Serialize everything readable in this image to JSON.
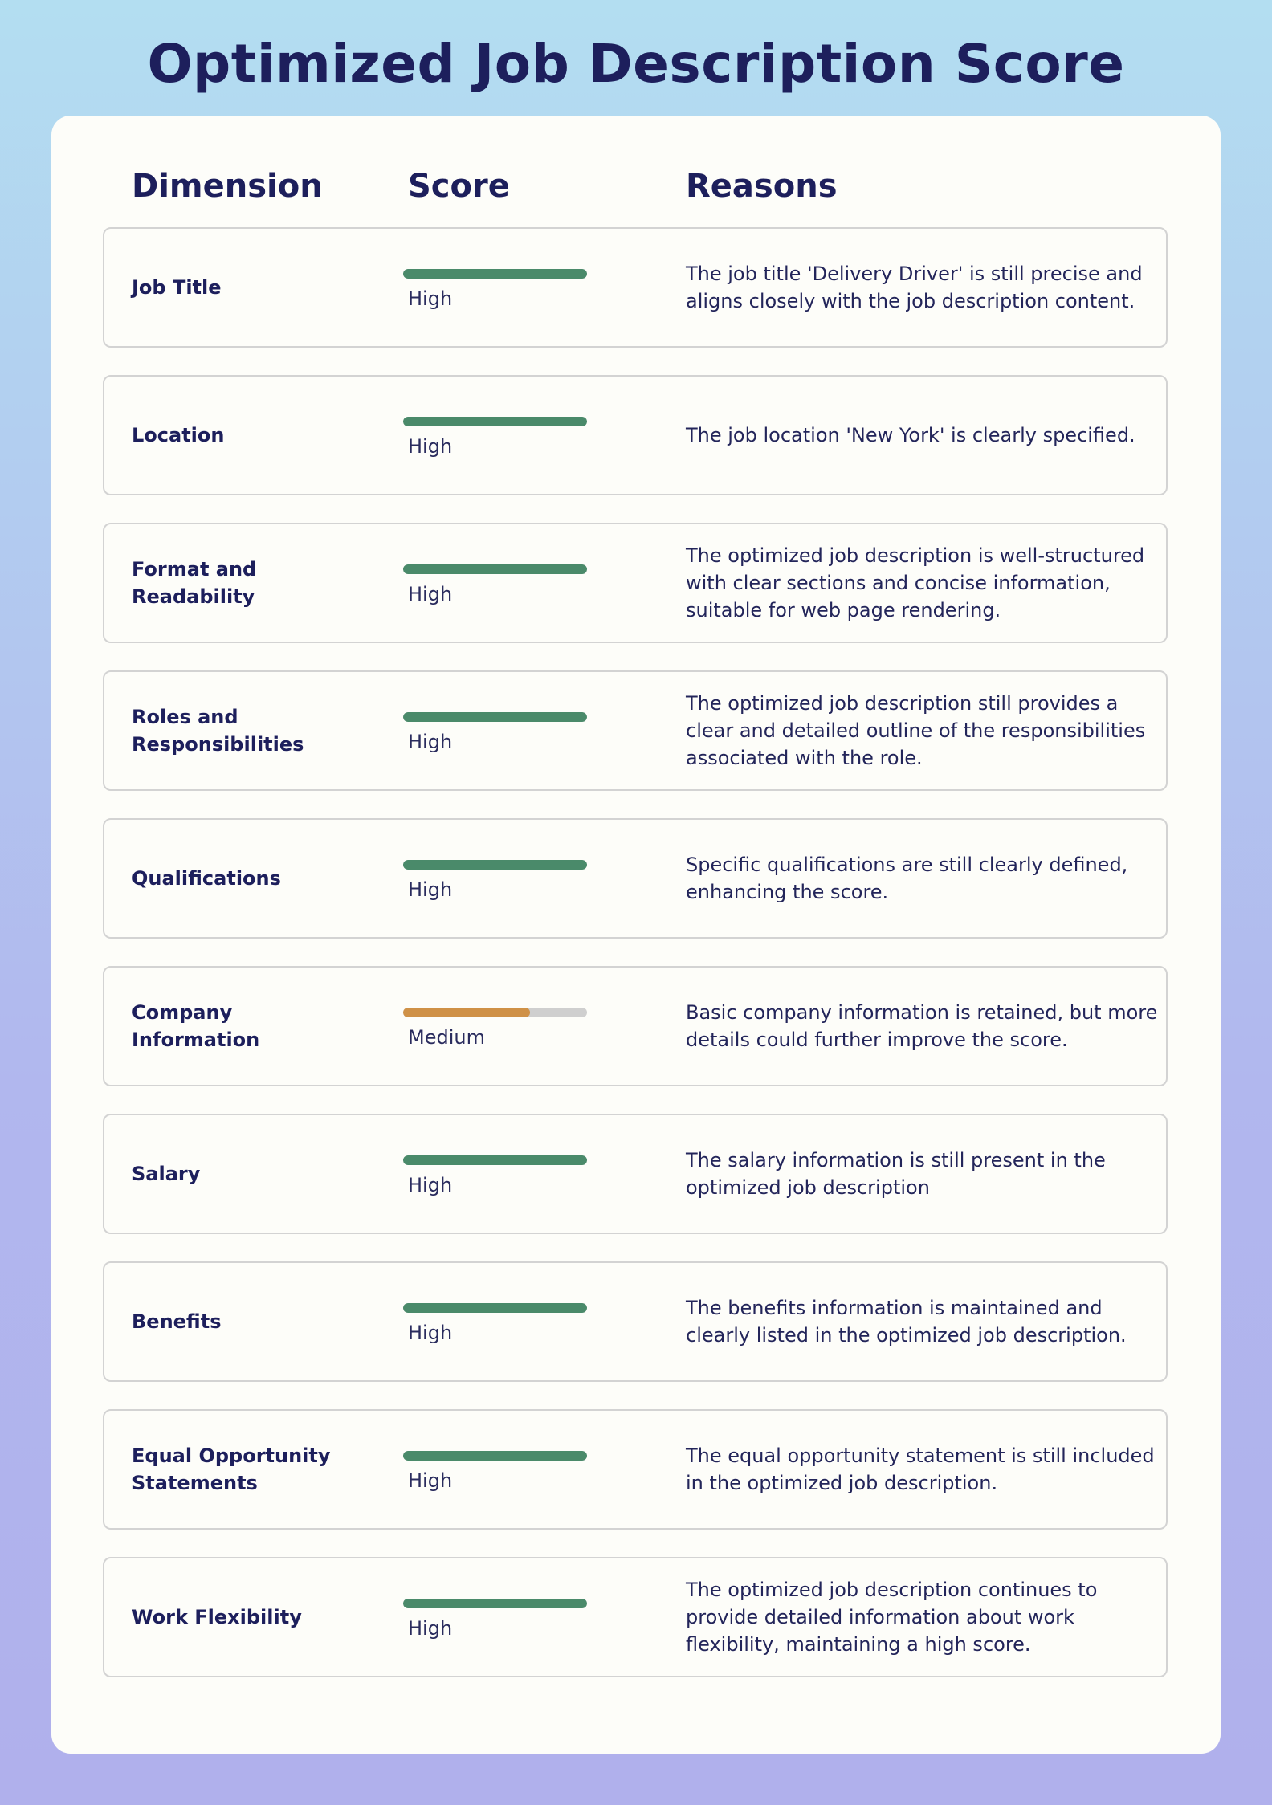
{
  "title": "Optimized Job Description Score",
  "headers": {
    "dimension": "Dimension",
    "score": "Score",
    "reasons": "Reasons"
  },
  "colors": {
    "high": "#4a8a6a",
    "medium": "#cf9147",
    "track": "#cfcfcf"
  },
  "rows": [
    {
      "dimension": "Job Title",
      "level": "High",
      "fill": 1.0,
      "reason": "The job title 'Delivery Driver' is still precise and aligns closely with the job description content."
    },
    {
      "dimension": "Location",
      "level": "High",
      "fill": 1.0,
      "reason": "The job location 'New York' is clearly specified."
    },
    {
      "dimension": "Format and Readability",
      "level": "High",
      "fill": 1.0,
      "reason": "The optimized job description is well-structured with clear sections and concise information, suitable for web page rendering."
    },
    {
      "dimension": "Roles and Responsibilities",
      "level": "High",
      "fill": 1.0,
      "reason": "The optimized job description still provides a clear and detailed outline of the responsibilities associated with the role."
    },
    {
      "dimension": "Qualifications",
      "level": "High",
      "fill": 1.0,
      "reason": "Specific qualifications are still clearly defined, enhancing the score."
    },
    {
      "dimension": "Company Information",
      "level": "Medium",
      "fill": 0.69,
      "reason": "Basic company information is retained, but more details could further improve the score."
    },
    {
      "dimension": "Salary",
      "level": "High",
      "fill": 1.0,
      "reason": "The salary information is still present in the optimized job description"
    },
    {
      "dimension": "Benefits",
      "level": "High",
      "fill": 1.0,
      "reason": "The benefits information is maintained and clearly listed in the optimized job description."
    },
    {
      "dimension": "Equal Opportunity Statements",
      "level": "High",
      "fill": 1.0,
      "reason": "The equal opportunity statement is still included in the optimized job description."
    },
    {
      "dimension": "Work Flexibility",
      "level": "High",
      "fill": 1.0,
      "reason": "The optimized job description continues to provide detailed information about work flexibility, maintaining a high score."
    }
  ]
}
